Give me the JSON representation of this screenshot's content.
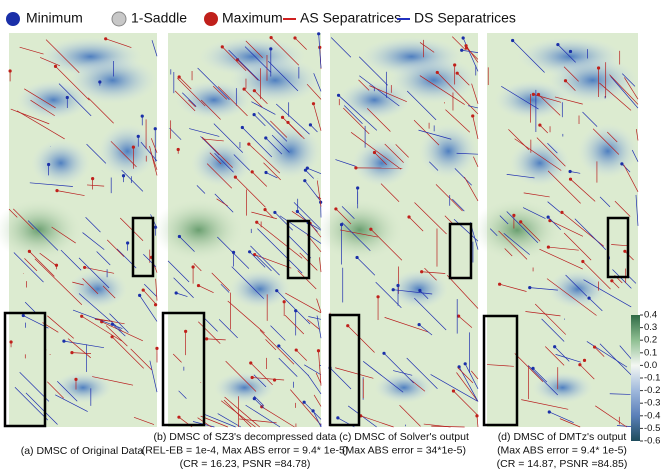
{
  "legend": [
    "Minimum",
    "1-Saddle",
    "Maximum",
    "AS Separatrices",
    "DS Separatrices"
  ],
  "panels": [
    {
      "caption": [
        "(a) DMSC of Original Data"
      ]
    },
    {
      "caption": [
        "(b) DMSC of SZ3's decompressed data",
        "(REL-EB = 1e-4, Max ABS error = 9.4* 1e-5)",
        "(CR = 16.23, PSNR =84.78)"
      ]
    },
    {
      "caption": [
        "(c) DMSC of Solver's output",
        "(Max ABS error = 34*1e-5)"
      ]
    },
    {
      "caption": [
        "(d) DMSC of DMTz's output",
        "(Max ABS error = 9.4* 1e-5)",
        "(CR = 14.87, PSNR =84.85)"
      ]
    }
  ],
  "colorbar": {
    "lim": [
      -0.6,
      0.4
    ],
    "ticks": [
      0.4,
      0.3,
      0.2,
      0.1,
      {
        "value": 0,
        "label": "0.0"
      },
      -0.1,
      -0.2,
      -0.3,
      -0.4,
      -0.5,
      -0.6
    ]
  }
}
